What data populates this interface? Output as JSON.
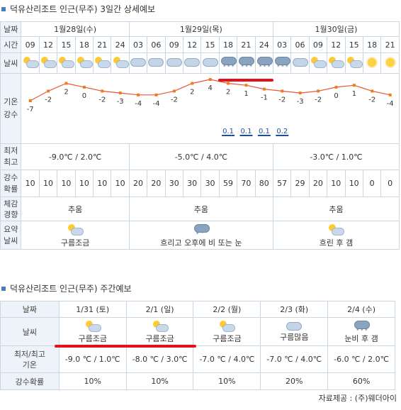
{
  "detail": {
    "title": "덕유산리조트 인근(무주) 3일간 상세예보",
    "row_labels": {
      "date": "날짜",
      "time": "시간",
      "weather": "날씨",
      "temp_precip": "기온\n강수",
      "minmax": "최저\n최고",
      "pop": "강수\n확률",
      "feel": "체감\n경향",
      "summary": "요약\n날씨"
    },
    "days": [
      {
        "label": "1월28일(수)",
        "span": 6,
        "minmax": "-9.0℃ / 2.0℃",
        "feel": "추움",
        "summary": "구름조금",
        "summary_icon": "partly-cloudy-icon"
      },
      {
        "label": "1월29일(목)",
        "span": 8,
        "minmax": "-5.0℃ / 4.0℃",
        "feel": "추움",
        "summary": "흐리고 오후에 비 또는 눈",
        "summary_icon": "cloudy-rain-snow-icon"
      },
      {
        "label": "1월30일(금)",
        "span": 7,
        "minmax": "-3.0℃ / 1.0℃",
        "feel": "추움",
        "summary": "흐린 후 갬",
        "summary_icon": "cloudy-then-clear-icon"
      }
    ],
    "times": [
      "09",
      "12",
      "15",
      "18",
      "21",
      "24",
      "03",
      "06",
      "09",
      "12",
      "15",
      "18",
      "21",
      "24",
      "03",
      "06",
      "09",
      "12",
      "15",
      "18",
      "21"
    ],
    "weather": [
      "partly",
      "partly",
      "partly",
      "partly",
      "partly",
      "partly",
      "cloudy",
      "cloudy",
      "cloudy",
      "cloudy",
      "cloudy",
      "snow",
      "snow",
      "snow",
      "snowlight",
      "cloudy",
      "partly",
      "partly",
      "partly",
      "sun",
      "sun"
    ],
    "temps": [
      -7,
      -2,
      2,
      0,
      -2,
      -3,
      -4,
      -4,
      -2,
      2,
      4,
      2,
      1,
      -1,
      -2,
      -3,
      -2,
      0,
      1,
      -2,
      -4
    ],
    "temp_labels": [
      "-7",
      "-2",
      "2",
      "0",
      "-2",
      "-3",
      "-4",
      "-4",
      "-2",
      "2",
      "4",
      "2",
      "1",
      "-1",
      "-2",
      "-3",
      "-2",
      "0",
      "1",
      "-2",
      "-4"
    ],
    "precip": [
      "",
      "",
      "",
      "",
      "",
      "",
      "",
      "",
      "",
      "",
      "",
      "0.1",
      "0.1",
      "0.1",
      "0.2",
      "",
      "",
      "",
      "",
      "",
      ""
    ],
    "pop": [
      "10",
      "10",
      "10",
      "10",
      "10",
      "10",
      "20",
      "20",
      "30",
      "30",
      "30",
      "59",
      "70",
      "80",
      "57",
      "29",
      "20",
      "10",
      "10",
      "0",
      "0"
    ]
  },
  "weekly": {
    "title": "덕유산리조트 인근(무주) 주간예보",
    "row_labels": {
      "date": "날짜",
      "weather": "날씨",
      "minmax": "최저/최고\n기온",
      "pop": "강수확률"
    },
    "days": [
      {
        "date": "1/31 (토)",
        "weather": "구름조금",
        "minmax": "-9.0 ℃ / 1.0℃",
        "pop": "10%"
      },
      {
        "date": "2/1 (일)",
        "weather": "구름조금",
        "minmax": "-8.0 ℃ / 3.0℃",
        "pop": "10%"
      },
      {
        "date": "2/2 (월)",
        "weather": "구름조금",
        "minmax": "-7.0 ℃ / 4.0℃",
        "pop": "10%"
      },
      {
        "date": "2/3 (화)",
        "weather": "구름많음",
        "minmax": "-7.0 ℃ / 4.0℃",
        "pop": "20%"
      },
      {
        "date": "2/4 (수)",
        "weather": "눈비 후 갬",
        "minmax": "-6.0 ℃ / 2.0℃",
        "pop": "60%"
      }
    ]
  },
  "footer": "자료제공 : (주)웨더아이",
  "colors": {
    "accent_line": "#e2121b",
    "temp_line": "#e8563a",
    "temp_point": "#ef7d1f",
    "border": "#c9d6e6",
    "header_bg": "#eef3fa"
  }
}
